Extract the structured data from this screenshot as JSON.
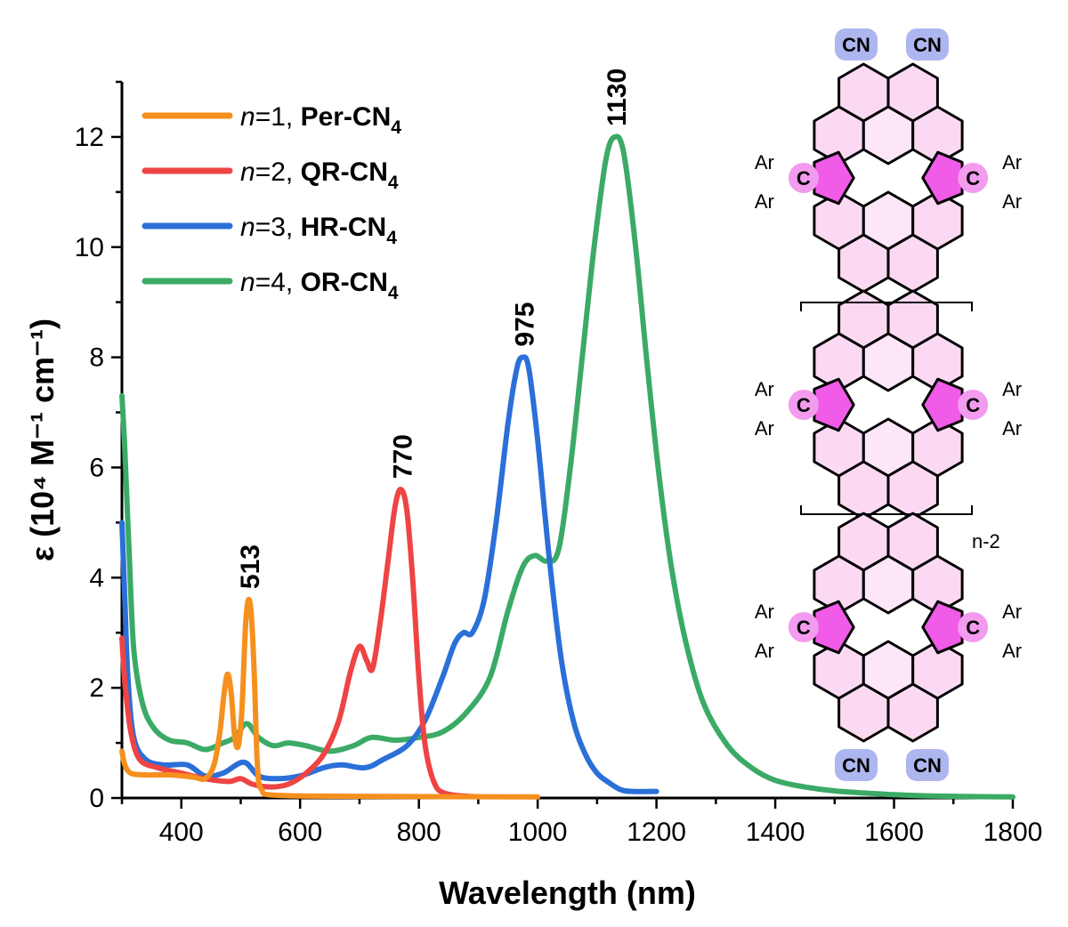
{
  "chart_data": {
    "type": "line",
    "xlabel": "Wavelength (nm)",
    "ylabel": "ε (10⁴ M⁻¹ cm⁻¹)",
    "xlim": [
      300,
      1800
    ],
    "ylim": [
      0,
      13
    ],
    "x_ticks": [
      400,
      600,
      800,
      1000,
      1200,
      1400,
      1600,
      1800
    ],
    "y_ticks": [
      0,
      2,
      4,
      6,
      8,
      10,
      12
    ],
    "grid": false,
    "legend_position": "top-left",
    "series": [
      {
        "name": "n=1, Per-CN4",
        "legend_prefix": "n",
        "legend_mid": "=1, ",
        "legend_bold": "Per-CN",
        "legend_sub": "4",
        "color": "#F5901E",
        "points": [
          [
            300,
            0.85
          ],
          [
            305,
            0.6
          ],
          [
            315,
            0.45
          ],
          [
            340,
            0.42
          ],
          [
            380,
            0.42
          ],
          [
            420,
            0.38
          ],
          [
            440,
            0.35
          ],
          [
            455,
            0.6
          ],
          [
            465,
            1.2
          ],
          [
            472,
            1.9
          ],
          [
            478,
            2.25
          ],
          [
            484,
            1.9
          ],
          [
            490,
            1.1
          ],
          [
            496,
            0.95
          ],
          [
            502,
            1.6
          ],
          [
            508,
            3.1
          ],
          [
            513,
            3.6
          ],
          [
            518,
            3.3
          ],
          [
            523,
            2.2
          ],
          [
            528,
            0.6
          ],
          [
            535,
            0.15
          ],
          [
            560,
            0.05
          ],
          [
            700,
            0.03
          ],
          [
            1000,
            0.02
          ]
        ]
      },
      {
        "name": "n=2, QR-CN4",
        "legend_prefix": "n",
        "legend_mid": "=2, ",
        "legend_bold": "QR-CN",
        "legend_sub": "4",
        "color": "#EE4444",
        "points": [
          [
            300,
            2.9
          ],
          [
            305,
            2.1
          ],
          [
            315,
            1.2
          ],
          [
            330,
            0.7
          ],
          [
            360,
            0.55
          ],
          [
            400,
            0.45
          ],
          [
            440,
            0.35
          ],
          [
            480,
            0.3
          ],
          [
            500,
            0.35
          ],
          [
            520,
            0.25
          ],
          [
            550,
            0.2
          ],
          [
            580,
            0.25
          ],
          [
            610,
            0.45
          ],
          [
            640,
            0.8
          ],
          [
            665,
            1.4
          ],
          [
            685,
            2.3
          ],
          [
            700,
            2.75
          ],
          [
            712,
            2.5
          ],
          [
            722,
            2.35
          ],
          [
            735,
            3.2
          ],
          [
            748,
            4.3
          ],
          [
            760,
            5.3
          ],
          [
            770,
            5.6
          ],
          [
            780,
            5.2
          ],
          [
            790,
            3.9
          ],
          [
            800,
            2.2
          ],
          [
            810,
            1.0
          ],
          [
            825,
            0.3
          ],
          [
            845,
            0.08
          ],
          [
            900,
            0.02
          ]
        ]
      },
      {
        "name": "n=3, HR-CN4",
        "legend_prefix": "n",
        "legend_mid": "=3, ",
        "legend_bold": "HR-CN",
        "legend_sub": "4",
        "color": "#2B6FD9",
        "points": [
          [
            300,
            5.0
          ],
          [
            305,
            3.6
          ],
          [
            310,
            2.2
          ],
          [
            320,
            1.1
          ],
          [
            340,
            0.7
          ],
          [
            370,
            0.6
          ],
          [
            410,
            0.6
          ],
          [
            440,
            0.4
          ],
          [
            470,
            0.45
          ],
          [
            505,
            0.65
          ],
          [
            530,
            0.4
          ],
          [
            560,
            0.35
          ],
          [
            600,
            0.4
          ],
          [
            640,
            0.55
          ],
          [
            670,
            0.6
          ],
          [
            710,
            0.55
          ],
          [
            740,
            0.7
          ],
          [
            780,
            0.95
          ],
          [
            810,
            1.4
          ],
          [
            840,
            2.2
          ],
          [
            860,
            2.8
          ],
          [
            875,
            3.0
          ],
          [
            890,
            3.0
          ],
          [
            910,
            3.6
          ],
          [
            930,
            5.0
          ],
          [
            950,
            6.8
          ],
          [
            965,
            7.8
          ],
          [
            975,
            8.0
          ],
          [
            985,
            7.8
          ],
          [
            1000,
            6.5
          ],
          [
            1020,
            4.3
          ],
          [
            1040,
            2.5
          ],
          [
            1060,
            1.4
          ],
          [
            1080,
            0.8
          ],
          [
            1100,
            0.45
          ],
          [
            1120,
            0.28
          ],
          [
            1140,
            0.15
          ],
          [
            1160,
            0.12
          ],
          [
            1200,
            0.12
          ]
        ]
      },
      {
        "name": "n=4, OR-CN4",
        "legend_prefix": "n",
        "legend_mid": "=4, ",
        "legend_bold": "OR-CN",
        "legend_sub": "4",
        "color": "#3BAA66",
        "points": [
          [
            300,
            7.3
          ],
          [
            305,
            6.3
          ],
          [
            312,
            4.5
          ],
          [
            320,
            2.7
          ],
          [
            335,
            1.7
          ],
          [
            355,
            1.25
          ],
          [
            380,
            1.05
          ],
          [
            410,
            1.0
          ],
          [
            440,
            0.88
          ],
          [
            470,
            1.0
          ],
          [
            490,
            1.1
          ],
          [
            510,
            1.35
          ],
          [
            530,
            1.1
          ],
          [
            555,
            0.95
          ],
          [
            580,
            1.0
          ],
          [
            610,
            0.95
          ],
          [
            650,
            0.85
          ],
          [
            690,
            0.95
          ],
          [
            720,
            1.1
          ],
          [
            760,
            1.05
          ],
          [
            800,
            1.1
          ],
          [
            840,
            1.2
          ],
          [
            880,
            1.55
          ],
          [
            920,
            2.2
          ],
          [
            950,
            3.4
          ],
          [
            975,
            4.2
          ],
          [
            995,
            4.4
          ],
          [
            1015,
            4.3
          ],
          [
            1035,
            4.5
          ],
          [
            1055,
            6.0
          ],
          [
            1075,
            8.0
          ],
          [
            1095,
            10.0
          ],
          [
            1115,
            11.6
          ],
          [
            1130,
            12.0
          ],
          [
            1145,
            11.7
          ],
          [
            1165,
            10.0
          ],
          [
            1185,
            7.8
          ],
          [
            1205,
            5.8
          ],
          [
            1225,
            4.2
          ],
          [
            1250,
            2.8
          ],
          [
            1280,
            1.7
          ],
          [
            1320,
            0.95
          ],
          [
            1360,
            0.55
          ],
          [
            1400,
            0.32
          ],
          [
            1450,
            0.2
          ],
          [
            1500,
            0.13
          ],
          [
            1550,
            0.09
          ],
          [
            1600,
            0.06
          ],
          [
            1650,
            0.04
          ],
          [
            1700,
            0.03
          ],
          [
            1800,
            0.02
          ]
        ]
      }
    ],
    "annotations": [
      {
        "text": "513",
        "x": 513,
        "y": 3.6
      },
      {
        "text": "770",
        "x": 770,
        "y": 5.6
      },
      {
        "text": "975",
        "x": 975,
        "y": 8.0
      },
      {
        "text": "1130",
        "x": 1130,
        "y": 12.0
      }
    ]
  },
  "structure": {
    "cn_label": "CN",
    "ar_label": "Ar",
    "c_label": "C",
    "repeat_label": "n-2",
    "accent_color": "#F05BE8",
    "light_fill": "#FBD9F3",
    "cn_badge_color": "#AEB6F0"
  }
}
